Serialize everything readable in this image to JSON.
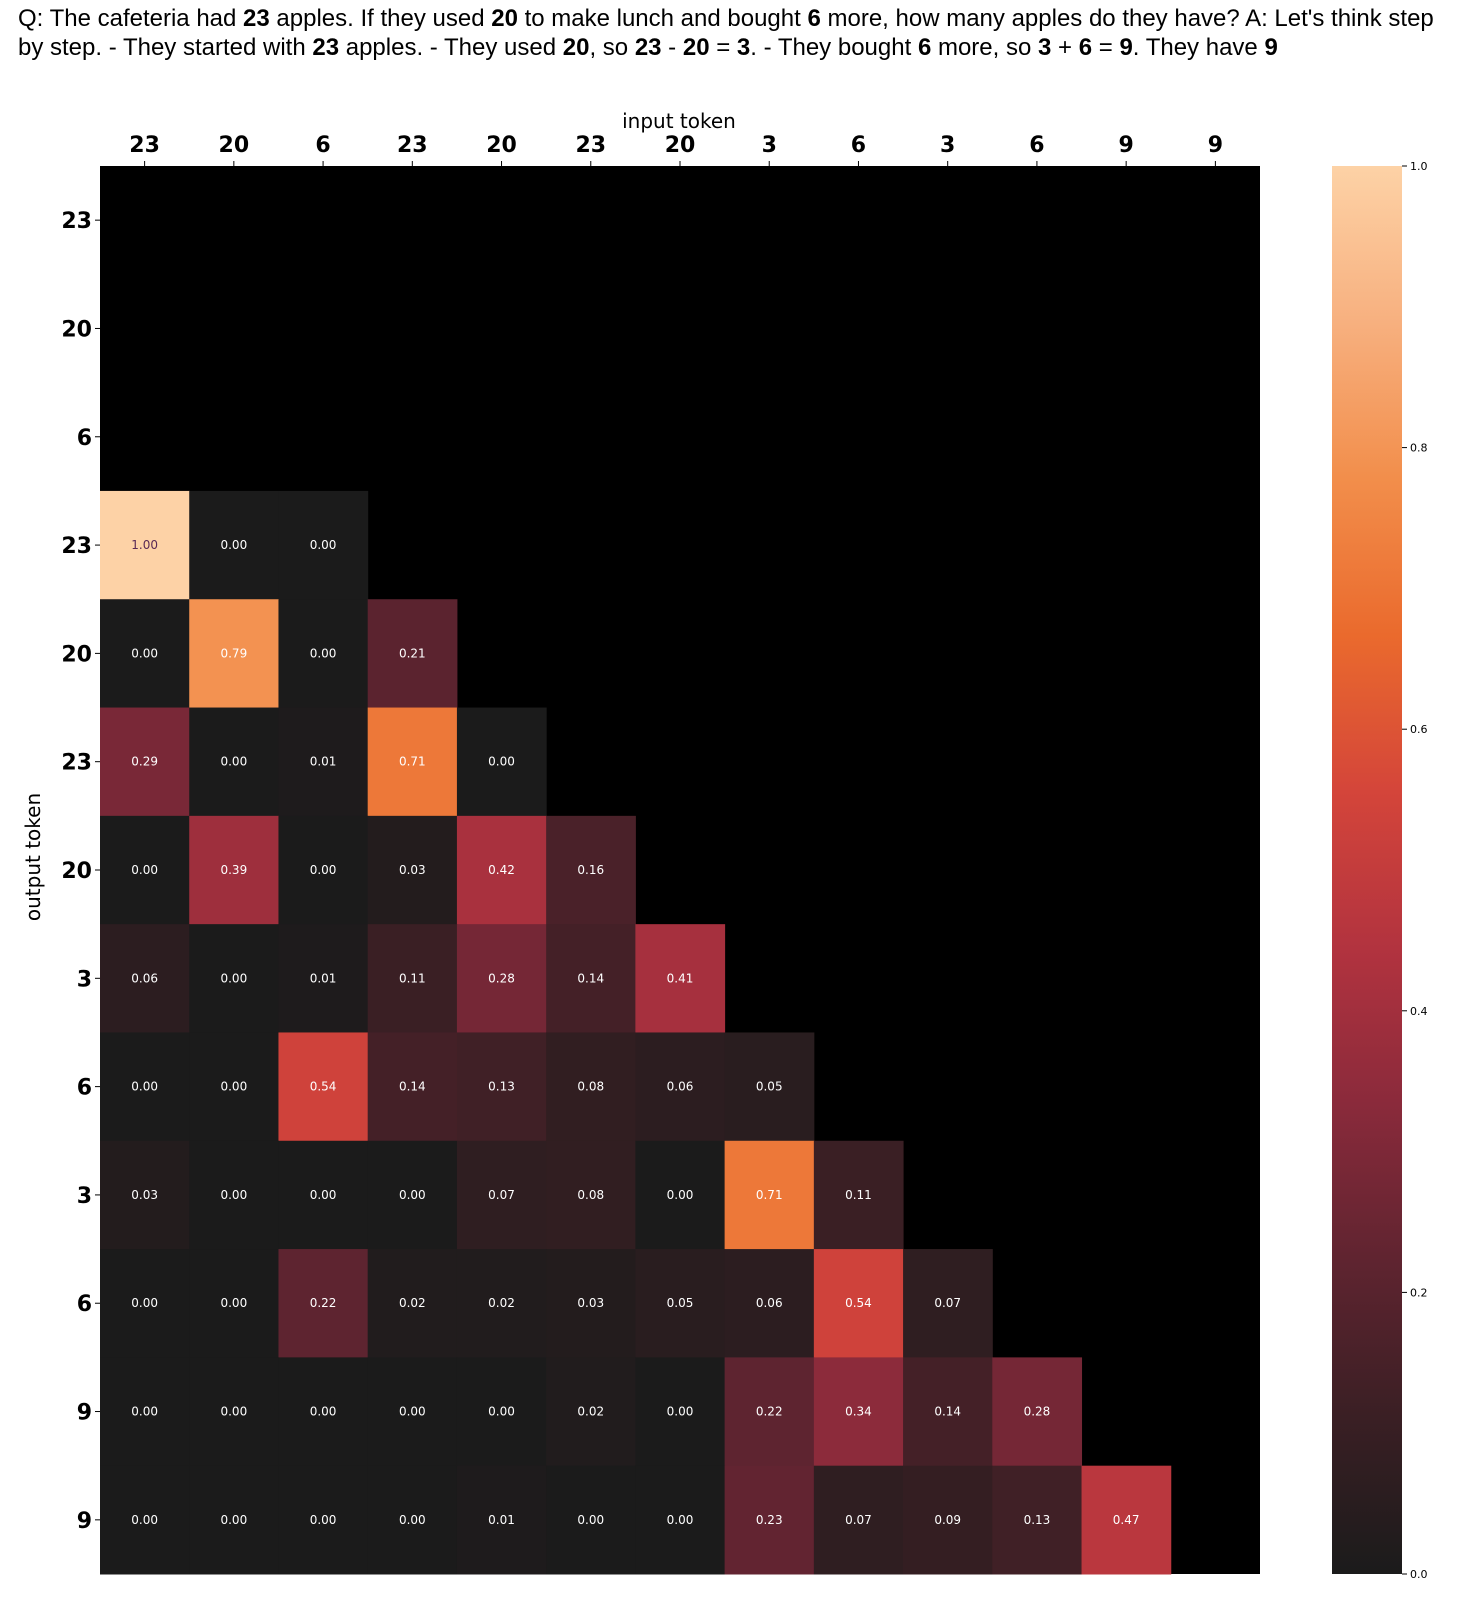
{
  "question": [
    {
      "t": "Q: The cafeteria had ",
      "b": false
    },
    {
      "t": "23",
      "b": true
    },
    {
      "t": " apples. If they used ",
      "b": false
    },
    {
      "t": "20",
      "b": true
    },
    {
      "t": " to make lunch and bought ",
      "b": false
    },
    {
      "t": "6",
      "b": true
    },
    {
      "t": " more, how many apples do they have? A: Let's think step by step. - They started with ",
      "b": false
    },
    {
      "t": "23",
      "b": true
    },
    {
      "t": " apples. - They used ",
      "b": false
    },
    {
      "t": "20",
      "b": true
    },
    {
      "t": ", so ",
      "b": false
    },
    {
      "t": "23",
      "b": true
    },
    {
      "t": " - ",
      "b": false
    },
    {
      "t": "20",
      "b": true
    },
    {
      "t": " = ",
      "b": false
    },
    {
      "t": "3",
      "b": true
    },
    {
      "t": ". - They bought ",
      "b": false
    },
    {
      "t": "6",
      "b": true
    },
    {
      "t": " more, so ",
      "b": false
    },
    {
      "t": "3",
      "b": true
    },
    {
      "t": " + ",
      "b": false
    },
    {
      "t": "6",
      "b": true
    },
    {
      "t": " = ",
      "b": false
    },
    {
      "t": "9",
      "b": true
    },
    {
      "t": ". They have ",
      "b": false
    },
    {
      "t": "9",
      "b": true
    }
  ],
  "chart_data": {
    "type": "heatmap",
    "xlabel": "input token",
    "ylabel": "output token",
    "x_categories": [
      "23",
      "20",
      "6",
      "23",
      "20",
      "23",
      "20",
      "3",
      "6",
      "3",
      "6",
      "9",
      "9"
    ],
    "y_categories": [
      "23",
      "20",
      "6",
      "23",
      "20",
      "23",
      "20",
      "3",
      "6",
      "3",
      "6",
      "9",
      "9"
    ],
    "values": [
      [
        null,
        null,
        null,
        null,
        null,
        null,
        null,
        null,
        null,
        null,
        null,
        null,
        null
      ],
      [
        null,
        null,
        null,
        null,
        null,
        null,
        null,
        null,
        null,
        null,
        null,
        null,
        null
      ],
      [
        null,
        null,
        null,
        null,
        null,
        null,
        null,
        null,
        null,
        null,
        null,
        null,
        null
      ],
      [
        1.0,
        0.0,
        0.0,
        null,
        null,
        null,
        null,
        null,
        null,
        null,
        null,
        null,
        null
      ],
      [
        0.0,
        0.79,
        0.0,
        0.21,
        null,
        null,
        null,
        null,
        null,
        null,
        null,
        null,
        null
      ],
      [
        0.29,
        0.0,
        0.01,
        0.71,
        0.0,
        null,
        null,
        null,
        null,
        null,
        null,
        null,
        null
      ],
      [
        0.0,
        0.39,
        0.0,
        0.03,
        0.42,
        0.16,
        null,
        null,
        null,
        null,
        null,
        null,
        null
      ],
      [
        0.06,
        0.0,
        0.01,
        0.11,
        0.28,
        0.14,
        0.41,
        null,
        null,
        null,
        null,
        null,
        null
      ],
      [
        0.0,
        0.0,
        0.54,
        0.14,
        0.13,
        0.08,
        0.06,
        0.05,
        null,
        null,
        null,
        null,
        null
      ],
      [
        0.03,
        0.0,
        0.0,
        0.0,
        0.07,
        0.08,
        0.0,
        0.71,
        0.11,
        null,
        null,
        null,
        null
      ],
      [
        0.0,
        0.0,
        0.22,
        0.02,
        0.02,
        0.03,
        0.05,
        0.06,
        0.54,
        0.07,
        null,
        null,
        null
      ],
      [
        0.0,
        0.0,
        0.0,
        0.0,
        0.0,
        0.02,
        0.0,
        0.22,
        0.34,
        0.14,
        0.28,
        null,
        null
      ],
      [
        0.0,
        0.0,
        0.0,
        0.0,
        0.01,
        0.0,
        0.0,
        0.23,
        0.07,
        0.09,
        0.13,
        0.47,
        null
      ]
    ],
    "colorbar": {
      "min": 0.0,
      "max": 1.0,
      "ticks": [
        "0.0",
        "0.2",
        "0.4",
        "0.6",
        "0.8",
        "1.0"
      ]
    },
    "colormap": [
      "#1b1b1b",
      "#3a1f24",
      "#5f2430",
      "#8a2a3b",
      "#b2333f",
      "#d4453a",
      "#ea6a2d",
      "#f28e4b",
      "#f7b07f",
      "#fdd2a6"
    ],
    "masked_color": "#000000",
    "grid": false
  }
}
